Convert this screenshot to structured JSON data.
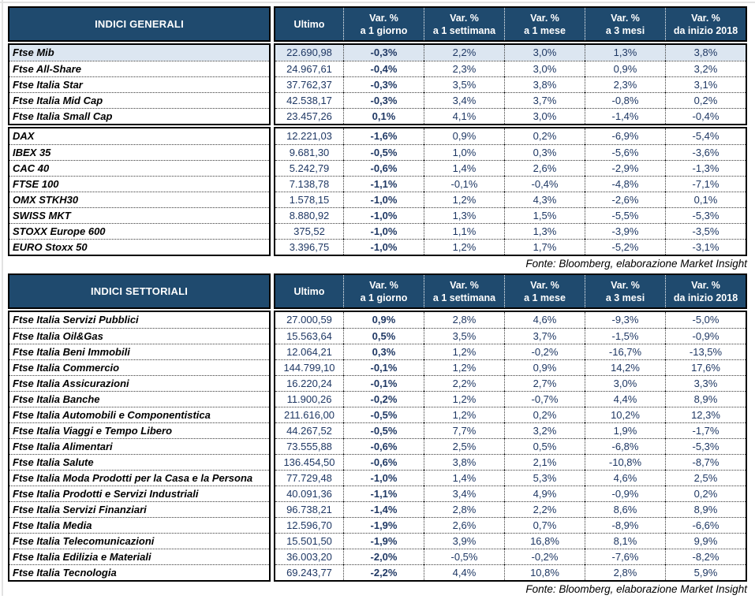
{
  "colors": {
    "header_bg": "#1f4a6e",
    "highlight_row": "#dce6f1",
    "value_text": "#1f3864"
  },
  "columns": [
    {
      "line1": "Ultimo",
      "line2": ""
    },
    {
      "line1": "Var. %",
      "line2": "a 1 giorno"
    },
    {
      "line1": "Var. %",
      "line2": "a 1 settimana"
    },
    {
      "line1": "Var. %",
      "line2": "a 1 mese"
    },
    {
      "line1": "Var. %",
      "line2": "a 3 mesi"
    },
    {
      "line1": "Var. %",
      "line2": "da inizio 2018"
    }
  ],
  "tables": [
    {
      "title": "INDICI GENERALI",
      "source_note": "Fonte: Bloomberg, elaborazione Market Insight",
      "blocks": [
        {
          "rows": [
            {
              "name": "Ftse Mib",
              "highlight": true,
              "values": [
                "22.690,98",
                "-0,3%",
                "2,2%",
                "3,0%",
                "1,3%",
                "3,8%"
              ]
            },
            {
              "name": "Ftse All-Share",
              "values": [
                "24.967,61",
                "-0,4%",
                "2,3%",
                "3,0%",
                "0,9%",
                "3,2%"
              ]
            },
            {
              "name": "Ftse Italia Star",
              "values": [
                "37.762,37",
                "-0,3%",
                "3,5%",
                "3,8%",
                "2,3%",
                "3,1%"
              ]
            },
            {
              "name": "Ftse Italia Mid Cap",
              "values": [
                "42.538,17",
                "-0,3%",
                "3,4%",
                "3,7%",
                "-0,8%",
                "0,2%"
              ]
            },
            {
              "name": "Ftse Italia Small Cap",
              "values": [
                "23.457,26",
                "0,1%",
                "4,1%",
                "3,0%",
                "-1,4%",
                "-0,4%"
              ]
            }
          ]
        },
        {
          "rows": [
            {
              "name": "DAX",
              "values": [
                "12.221,03",
                "-1,6%",
                "0,9%",
                "0,2%",
                "-6,9%",
                "-5,4%"
              ]
            },
            {
              "name": "IBEX 35",
              "values": [
                "9.681,30",
                "-0,5%",
                "1,0%",
                "0,3%",
                "-5,6%",
                "-3,6%"
              ]
            },
            {
              "name": "CAC 40",
              "values": [
                "5.242,79",
                "-0,6%",
                "1,4%",
                "2,6%",
                "-2,9%",
                "-1,3%"
              ]
            },
            {
              "name": "FTSE 100",
              "values": [
                "7.138,78",
                "-1,1%",
                "-0,1%",
                "-0,4%",
                "-4,8%",
                "-7,1%"
              ]
            },
            {
              "name": "OMX STKH30",
              "values": [
                "1.578,15",
                "-1,0%",
                "1,2%",
                "4,3%",
                "-2,6%",
                "0,1%"
              ]
            },
            {
              "name": "SWISS MKT",
              "values": [
                "8.880,92",
                "-1,0%",
                "1,3%",
                "1,5%",
                "-5,5%",
                "-5,3%"
              ]
            },
            {
              "name": "STOXX Europe 600",
              "values": [
                "375,52",
                "-1,0%",
                "1,1%",
                "1,3%",
                "-3,9%",
                "-3,5%"
              ]
            },
            {
              "name": "EURO Stoxx 50",
              "values": [
                "3.396,75",
                "-1,0%",
                "1,2%",
                "1,7%",
                "-5,2%",
                "-3,1%"
              ]
            }
          ]
        }
      ]
    },
    {
      "title": "INDICI SETTORIALI",
      "source_note": "Fonte: Bloomberg, elaborazione Market Insight",
      "blocks": [
        {
          "rows": [
            {
              "name": "Ftse Italia Servizi Pubblici",
              "values": [
                "27.000,59",
                "0,9%",
                "2,8%",
                "4,6%",
                "-9,3%",
                "-5,0%"
              ]
            },
            {
              "name": "Ftse Italia Oil&Gas",
              "values": [
                "15.563,64",
                "0,5%",
                "3,5%",
                "3,7%",
                "-1,5%",
                "-0,9%"
              ]
            },
            {
              "name": "Ftse Italia Beni Immobili",
              "values": [
                "12.064,21",
                "0,3%",
                "1,2%",
                "-0,2%",
                "-16,7%",
                "-13,5%"
              ]
            },
            {
              "name": "Ftse Italia Commercio",
              "values": [
                "144.799,10",
                "-0,1%",
                "1,2%",
                "0,9%",
                "14,2%",
                "17,6%"
              ]
            },
            {
              "name": "Ftse Italia Assicurazioni",
              "values": [
                "16.220,24",
                "-0,1%",
                "2,2%",
                "2,7%",
                "3,0%",
                "3,3%"
              ]
            },
            {
              "name": "Ftse Italia Banche",
              "values": [
                "11.900,26",
                "-0,2%",
                "1,2%",
                "-0,7%",
                "4,4%",
                "8,9%"
              ]
            },
            {
              "name": "Ftse Italia Automobili e Componentistica",
              "values": [
                "211.616,00",
                "-0,5%",
                "1,2%",
                "0,2%",
                "10,2%",
                "12,3%"
              ]
            },
            {
              "name": "Ftse Italia Viaggi e Tempo Libero",
              "values": [
                "44.267,52",
                "-0,5%",
                "7,7%",
                "3,2%",
                "1,9%",
                "-1,7%"
              ]
            },
            {
              "name": "Ftse Italia Alimentari",
              "values": [
                "73.555,88",
                "-0,6%",
                "2,5%",
                "0,5%",
                "-6,8%",
                "-5,3%"
              ]
            },
            {
              "name": "Ftse Italia Salute",
              "values": [
                "136.454,50",
                "-0,6%",
                "3,8%",
                "2,1%",
                "-10,8%",
                "-8,7%"
              ]
            },
            {
              "name": "Ftse Italia Moda Prodotti per la Casa e la Persona",
              "values": [
                "77.729,48",
                "-1,0%",
                "1,4%",
                "5,3%",
                "4,6%",
                "2,5%"
              ]
            },
            {
              "name": "Ftse Italia Prodotti e Servizi Industriali",
              "values": [
                "40.091,36",
                "-1,1%",
                "3,4%",
                "4,9%",
                "-0,9%",
                "0,2%"
              ]
            },
            {
              "name": "Ftse Italia Servizi Finanziari",
              "values": [
                "96.738,21",
                "-1,4%",
                "2,8%",
                "2,2%",
                "8,6%",
                "8,9%"
              ]
            },
            {
              "name": "Ftse Italia Media",
              "values": [
                "12.596,70",
                "-1,9%",
                "2,6%",
                "0,7%",
                "-8,9%",
                "-6,6%"
              ]
            },
            {
              "name": "Ftse Italia Telecomunicazioni",
              "values": [
                "15.501,50",
                "-1,9%",
                "3,9%",
                "16,8%",
                "8,1%",
                "9,9%"
              ]
            },
            {
              "name": "Ftse Italia Edilizia e Materiali",
              "values": [
                "36.003,20",
                "-2,0%",
                "-0,5%",
                "-0,2%",
                "-7,6%",
                "-8,2%"
              ]
            },
            {
              "name": "Ftse Italia Tecnologia",
              "values": [
                "69.243,77",
                "-2,2%",
                "4,4%",
                "10,8%",
                "2,8%",
                "5,9%"
              ]
            }
          ]
        }
      ]
    }
  ]
}
